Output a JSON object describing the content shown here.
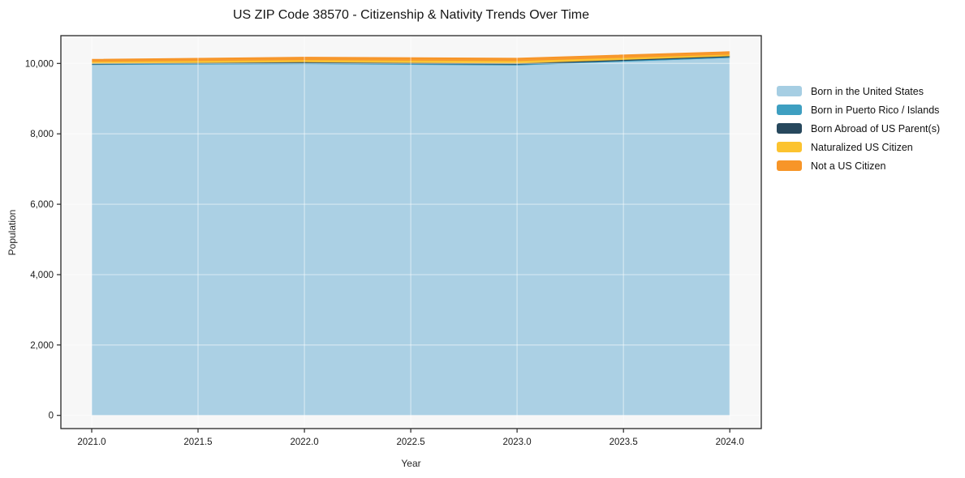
{
  "title": "US ZIP Code 38570 - Citizenship & Nativity Trends Over Time",
  "chart_data": {
    "type": "area",
    "stacked": true,
    "title": "US ZIP Code 38570 - Citizenship & Nativity Trends Over Time",
    "xlabel": "Year",
    "ylabel": "Population",
    "x": [
      2021,
      2022,
      2023,
      2024
    ],
    "series": [
      {
        "name": "Born in the United States",
        "color": "#a6cee3",
        "values": [
          9968,
          9990,
          9953,
          10158
        ]
      },
      {
        "name": "Born in Puerto Rico / Islands",
        "color": "#3e9fc1",
        "values": [
          12,
          15,
          14,
          21
        ]
      },
      {
        "name": "Born Abroad of US Parent(s)",
        "color": "#27485d",
        "values": [
          16,
          29,
          31,
          26
        ]
      },
      {
        "name": "Naturalized US Citizen",
        "color": "#fcc32f",
        "values": [
          52,
          61,
          70,
          47
        ]
      },
      {
        "name": "Not a US Citizen",
        "color": "#f79528",
        "values": [
          57,
          70,
          68,
          71
        ]
      }
    ],
    "totals": [
      10105,
      10165,
      10136,
      10323
    ],
    "x_ticks": [
      "2021.0",
      "2021.5",
      "2022.0",
      "2022.5",
      "2023.0",
      "2023.5",
      "2024.0"
    ],
    "x_tick_values": [
      2021,
      2021.5,
      2022,
      2022.5,
      2023,
      2023.5,
      2024
    ],
    "y_ticks": [
      "0",
      "2,000",
      "4,000",
      "6,000",
      "8,000",
      "10,000"
    ],
    "y_tick_values": [
      0,
      2000,
      4000,
      6000,
      8000,
      10000
    ],
    "x_range": [
      2020.855,
      2024.148
    ],
    "y_range": [
      -375,
      10790
    ],
    "grid": true,
    "plot_bg": "#f7f7f7",
    "gridline_color": "rgba(255,255,255,0.45)",
    "spine_color": "#262626",
    "tick_label_color": "#1a1a1a",
    "legend_position": "right"
  }
}
